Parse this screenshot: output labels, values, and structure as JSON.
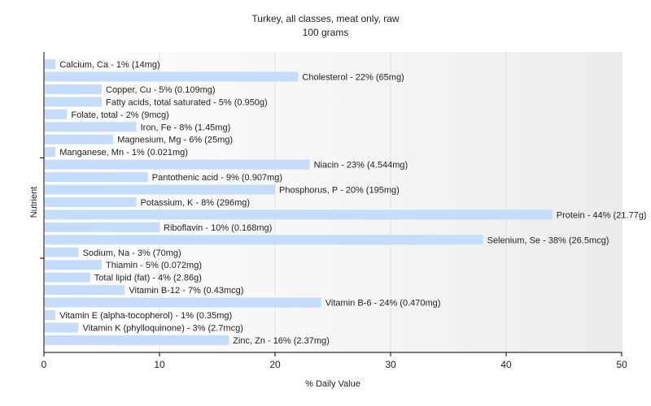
{
  "chart_data": {
    "type": "bar",
    "orientation": "horizontal",
    "title": "Turkey, all classes, meat only, raw",
    "subtitle": "100 grams",
    "xlabel": "% Daily Value",
    "ylabel": "Nutrient",
    "xlim": [
      0,
      50
    ],
    "x_ticks": [
      "0",
      "10",
      "20",
      "30",
      "40",
      "50"
    ],
    "grid": true,
    "bar_color": "#c6dcfb",
    "background_gradient": [
      "#ffffff",
      "#ececec"
    ],
    "categories": [
      "Calcium, Ca",
      "Cholesterol",
      "Copper, Cu",
      "Fatty acids, total saturated",
      "Folate, total",
      "Iron, Fe",
      "Magnesium, Mg",
      "Manganese, Mn",
      "Niacin",
      "Pantothenic acid",
      "Phosphorus, P",
      "Potassium, K",
      "Protein",
      "Riboflavin",
      "Selenium, Se",
      "Sodium, Na",
      "Thiamin",
      "Total lipid (fat)",
      "Vitamin B-12",
      "Vitamin B-6",
      "Vitamin E (alpha-tocopherol)",
      "Vitamin K (phylloquinone)",
      "Zinc, Zn"
    ],
    "values": [
      1,
      22,
      5,
      5,
      2,
      8,
      6,
      1,
      23,
      9,
      20,
      8,
      44,
      10,
      38,
      3,
      5,
      4,
      7,
      24,
      1,
      3,
      16
    ],
    "labels": [
      "Calcium, Ca - 1% (14mg)",
      "Cholesterol - 22% (65mg)",
      "Copper, Cu - 5% (0.109mg)",
      "Fatty acids, total saturated - 5% (0.950g)",
      "Folate, total - 2% (9mcg)",
      "Iron, Fe - 8% (1.45mg)",
      "Magnesium, Mg - 6% (25mg)",
      "Manganese, Mn - 1% (0.021mg)",
      "Niacin - 23% (4.544mg)",
      "Pantothenic acid - 9% (0.907mg)",
      "Phosphorus, P - 20% (195mg)",
      "Potassium, K - 8% (296mg)",
      "Protein - 44% (21.77g)",
      "Riboflavin - 10% (0.168mg)",
      "Selenium, Se - 38% (26.5mcg)",
      "Sodium, Na - 3% (70mg)",
      "Thiamin - 5% (0.072mg)",
      "Total lipid (fat) - 4% (2.86g)",
      "Vitamin B-12 - 7% (0.43mcg)",
      "Vitamin B-6 - 24% (0.470mg)",
      "Vitamin E (alpha-tocopherol) - 1% (0.35mg)",
      "Vitamin K (phylloquinone) - 3% (2.7mcg)",
      "Zinc, Zn - 16% (2.37mg)"
    ]
  }
}
